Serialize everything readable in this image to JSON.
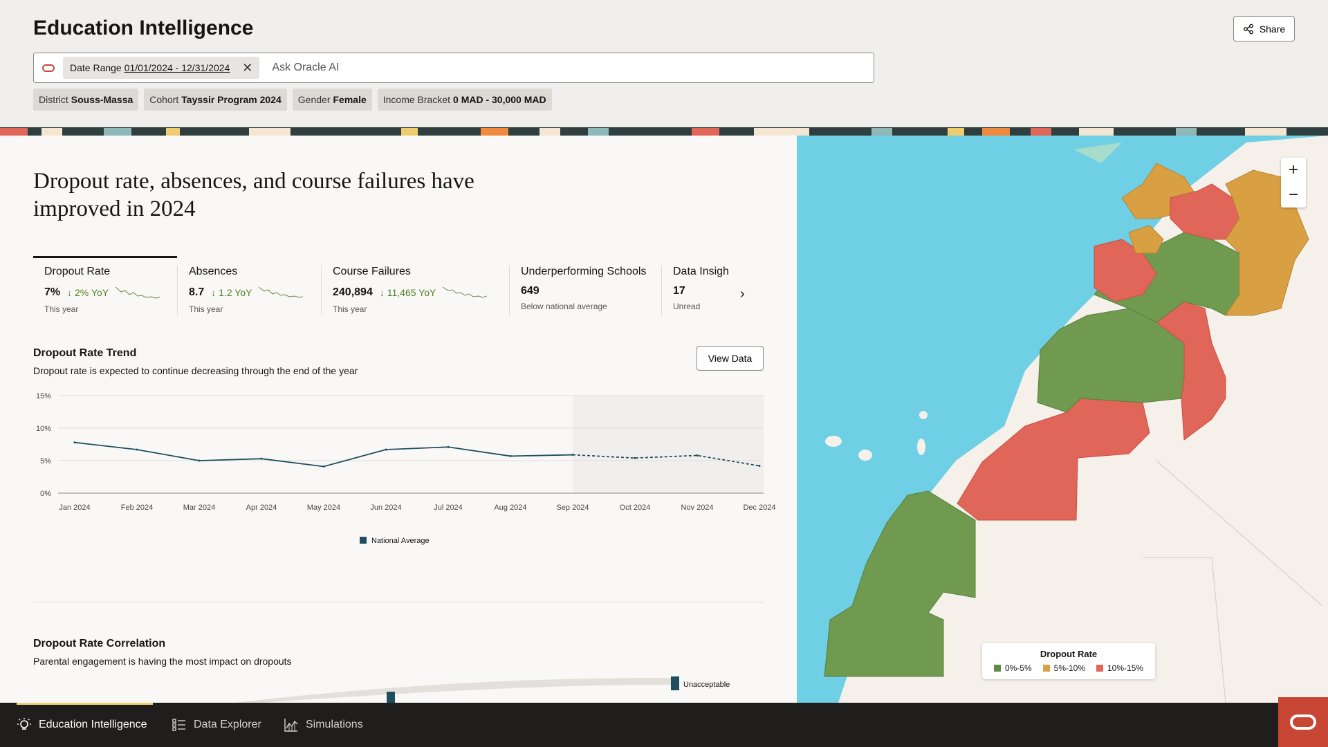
{
  "app": {
    "title": "Education Intelligence"
  },
  "header": {
    "share_label": "Share"
  },
  "search": {
    "date_chip_label": "Date Range",
    "date_chip_value": "01/01/2024 - 12/31/2024",
    "placeholder": "Ask Oracle AI"
  },
  "filters": [
    {
      "label": "District",
      "value": "Souss-Massa"
    },
    {
      "label": "Cohort",
      "value": "Tayssir Program 2024"
    },
    {
      "label": "Gender",
      "value": "Female"
    },
    {
      "label": "Income Bracket",
      "value": "0 MAD - 30,000 MAD"
    }
  ],
  "headline": "Dropout rate, absences, and course failures have improved in 2024",
  "kpis": [
    {
      "title": "Dropout Rate",
      "value": "7%",
      "change": "2% YoY",
      "sub": "This year"
    },
    {
      "title": "Absences",
      "value": "8.7",
      "change": "1.2 YoY",
      "sub": "This year"
    },
    {
      "title": "Course Failures",
      "value": "240,894",
      "change": "11,465 YoY",
      "sub": "This year"
    },
    {
      "title": "Underperforming Schools",
      "value": "649",
      "change": "",
      "sub": "Below national average"
    },
    {
      "title": "Data Insigh",
      "value": "17",
      "change": "",
      "sub": "Unread"
    }
  ],
  "trend": {
    "title": "Dropout Rate Trend",
    "subtitle": "Dropout rate is expected to continue decreasing through the end of the year",
    "view_data_label": "View Data"
  },
  "chart_data": {
    "type": "line",
    "categories": [
      "Jan 2024",
      "Feb 2024",
      "Mar 2024",
      "Apr 2024",
      "May 2024",
      "Jun 2024",
      "Jul 2024",
      "Aug 2024",
      "Sep 2024",
      "Oct 2024",
      "Nov 2024",
      "Dec 2024"
    ],
    "y_ticks": [
      "0%",
      "5%",
      "10%",
      "15%"
    ],
    "ylim": [
      0,
      15
    ],
    "series": [
      {
        "name": "National Average",
        "values": [
          7.8,
          6.7,
          5.0,
          5.3,
          4.1,
          6.7,
          7.1,
          5.7,
          5.9,
          5.4,
          5.8,
          4.2
        ],
        "forecast_from_index": 8
      }
    ],
    "forecast_region_start": "Sep 2024",
    "grid": true,
    "legend": "bottom-center",
    "color": "#1f4e5c"
  },
  "correlation": {
    "title": "Dropout Rate Correlation",
    "subtitle": "Parental engagement is having the most impact on dropouts",
    "node_label": "Unacceptable"
  },
  "map_legend": {
    "title": "Dropout Rate",
    "items": [
      {
        "label": "0%-5%",
        "color": "#5f8a44"
      },
      {
        "label": "5%-10%",
        "color": "#d9a043"
      },
      {
        "label": "10%-15%",
        "color": "#e0665a"
      }
    ]
  },
  "map_icons": {
    "zoom_in": "plus-icon",
    "zoom_out": "minus-icon"
  },
  "bottom_nav": [
    {
      "label": "Education Intelligence",
      "icon": "lightbulb-icon"
    },
    {
      "label": "Data Explorer",
      "icon": "list-icon"
    },
    {
      "label": "Simulations",
      "icon": "chart-icon"
    }
  ]
}
